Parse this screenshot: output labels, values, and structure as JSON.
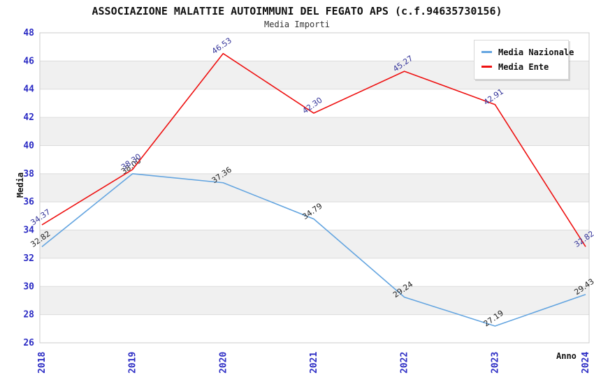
{
  "header": {
    "title": "ASSOCIAZIONE MALATTIE AUTOIMMUNI DEL FEGATO APS (c.f.94635730156)",
    "subtitle": "Media Importi"
  },
  "colors": {
    "axis_tick_label": "#2b2bc4",
    "grid_line": "#dcdcdc",
    "band_gray": "#f0f0f0",
    "plot_border": "#cccccc",
    "series_nazionale": "#64a5e0",
    "series_ente": "#ee1111",
    "value_label_nazionale": "#222222",
    "value_label_ente": "#333399"
  },
  "chart_data": {
    "type": "line",
    "title": "ASSOCIAZIONE MALATTIE AUTOIMMUNI DEL FEGATO APS (c.f.94635730156)",
    "subtitle": "Media Importi",
    "x": [
      "2018",
      "2019",
      "2020",
      "2021",
      "2022",
      "2023",
      "2024"
    ],
    "series": [
      {
        "name": "Media Nazionale",
        "color": "#64a5e0",
        "label_color": "#222222",
        "values": [
          32.82,
          38.0,
          37.36,
          34.79,
          29.24,
          27.19,
          29.43
        ]
      },
      {
        "name": "Media Ente",
        "color": "#ee1111",
        "label_color": "#333399",
        "values": [
          34.37,
          38.3,
          46.53,
          42.3,
          45.27,
          42.91,
          32.82
        ]
      }
    ],
    "xlabel": "Anno",
    "ylabel": "Media",
    "ylim": [
      26,
      48
    ],
    "ytick_step": 2,
    "grid": true,
    "legend_position": "top-right",
    "band_colors": [
      "#ffffff",
      "#f0f0f0"
    ]
  }
}
